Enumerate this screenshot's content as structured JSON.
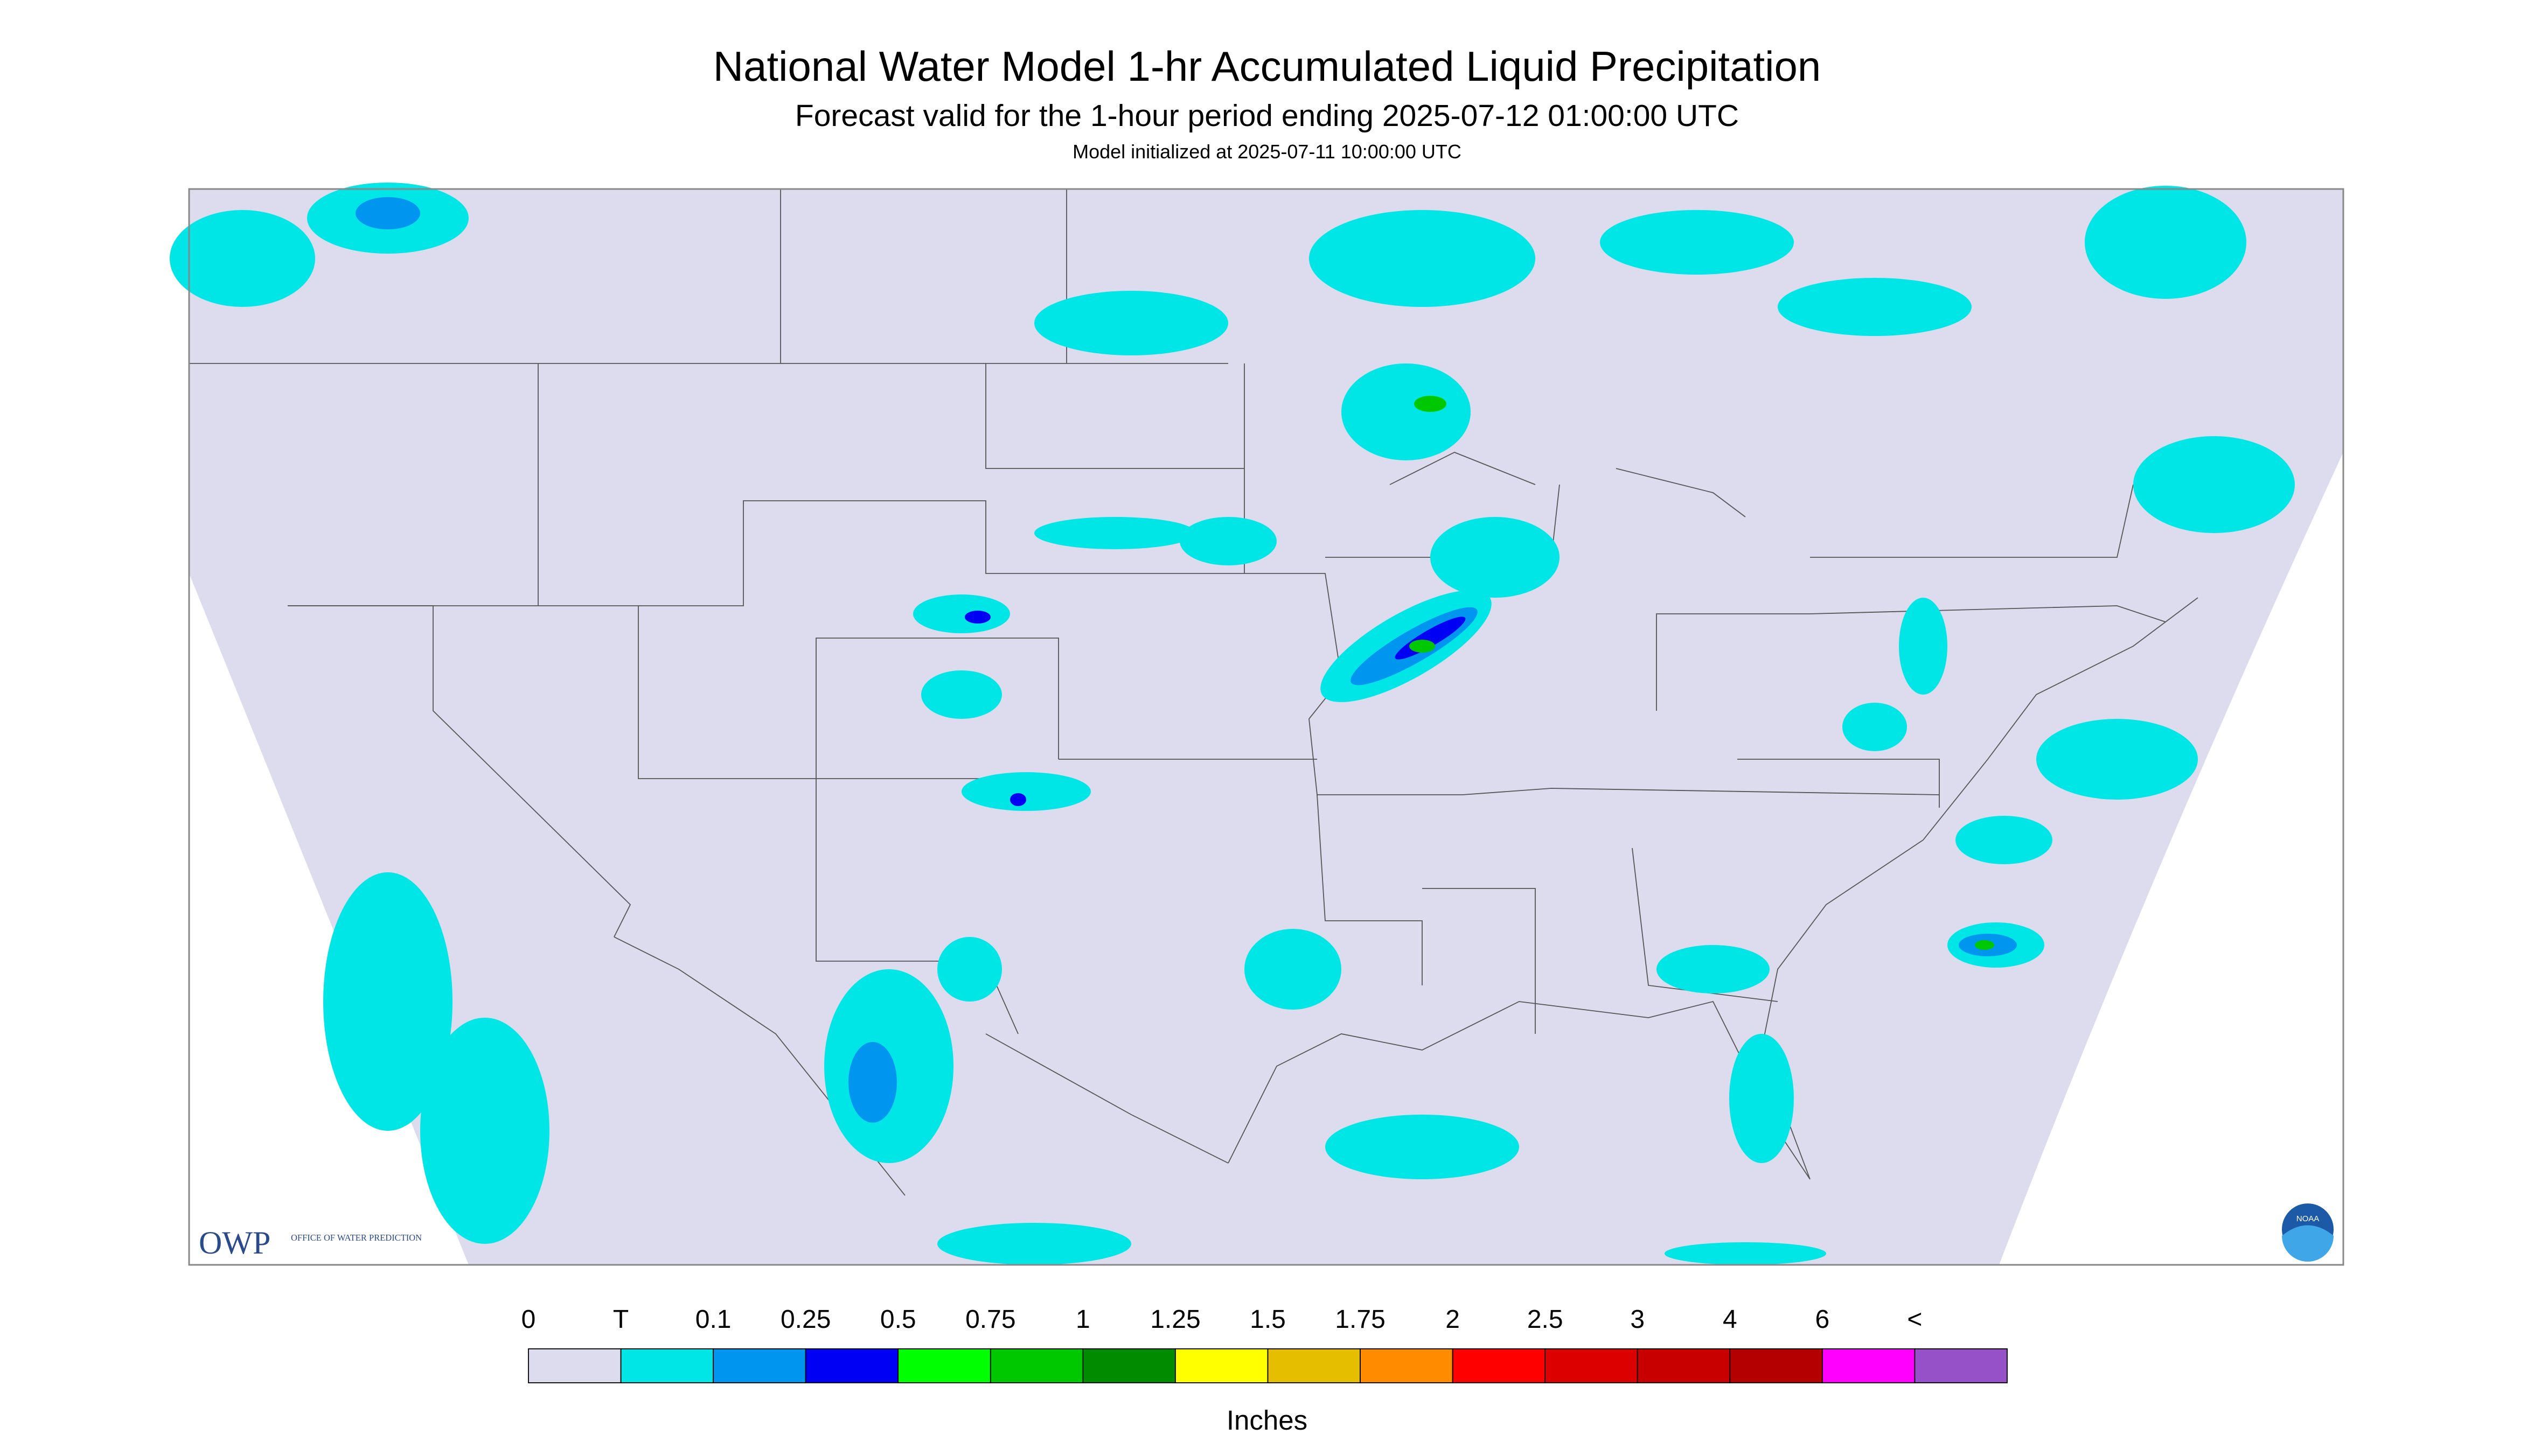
{
  "header": {
    "title": "National Water Model 1-hr Accumulated Liquid Precipitation",
    "subtitle": "Forecast valid for the 1-hour period ending 2025-07-12 01:00:00 UTC",
    "init": "Model initialized at 2025-07-11 10:00:00 UTC"
  },
  "legend": {
    "labels": [
      "0",
      "T",
      "0.1",
      "0.25",
      "0.5",
      "0.75",
      "1",
      "1.25",
      "1.5",
      "1.75",
      "2",
      "2.5",
      "3",
      "4",
      "6",
      "<"
    ],
    "colors": [
      "#dcdcee",
      "#00e5e5",
      "#0096f0",
      "#0000f5",
      "#00ff00",
      "#00c800",
      "#008c00",
      "#ffff00",
      "#e5be00",
      "#ff8c00",
      "#ff0000",
      "#dc0000",
      "#c80000",
      "#b40000",
      "#ff00ff",
      "#9650c8"
    ],
    "unit": "Inches"
  },
  "logo": {
    "owp": "OWP",
    "office": "OFFICE OF WATER PREDICTION",
    "noaa": "NOAA"
  }
}
